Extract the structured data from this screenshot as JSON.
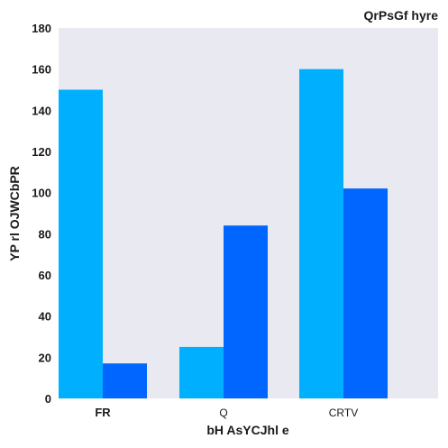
{
  "chart_data": {
    "type": "bar",
    "title": "QrPsGf hyre",
    "xlabel": "bH  AsYCJhl e",
    "ylabel": "YP rl OJWCbPR",
    "categories": [
      "FR",
      "Q",
      "CRTV"
    ],
    "series": [
      {
        "values": [
          150,
          25,
          160
        ],
        "color": "#00b0ff"
      },
      {
        "values": [
          17,
          84,
          102
        ],
        "color": "#0066ff"
      }
    ],
    "ylim": [
      0,
      180
    ],
    "yticks": [
      0,
      20,
      40,
      60,
      80,
      100,
      120,
      140,
      160,
      180
    ],
    "grid": false,
    "background": "#e9e9f2"
  }
}
